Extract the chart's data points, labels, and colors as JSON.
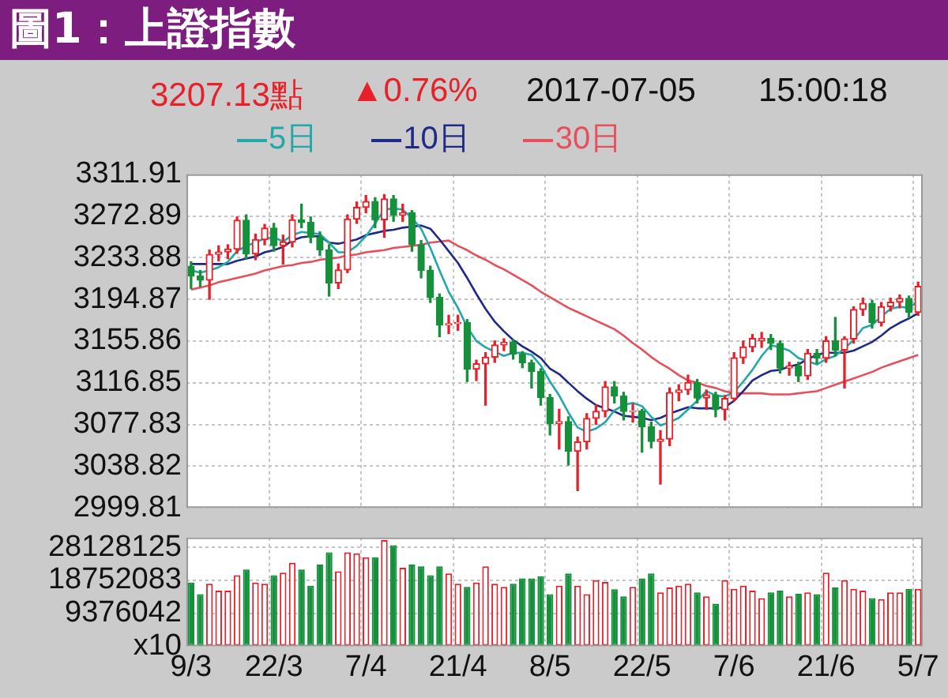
{
  "chart_data": [
    {
      "type": "candlestick",
      "title": "圖1：上證指數",
      "annotations": [
        "3207.13點",
        "▲0.76%",
        "2017-07-05",
        "15:00:18"
      ],
      "categories": [
        null,
        null,
        null,
        null,
        null,
        null,
        null,
        null,
        null,
        null,
        null,
        null,
        null,
        null,
        null,
        null,
        null,
        null,
        null,
        null,
        null,
        null,
        null,
        null,
        null,
        null,
        null,
        null,
        null,
        null,
        null,
        null,
        null,
        null,
        null,
        null,
        null,
        null,
        null,
        null,
        null,
        null,
        null,
        null,
        null,
        null,
        null,
        null,
        null,
        null,
        null,
        null,
        null,
        null,
        null,
        null,
        null,
        null,
        null,
        null,
        null,
        null,
        null,
        null,
        null,
        null,
        null,
        null,
        null,
        null,
        null,
        null,
        null,
        null,
        null,
        null,
        null,
        null,
        null,
        null
      ],
      "ohlc": [
        [
          3226.0,
          3230.0,
          3205.0,
          3216.7
        ],
        [
          3216.7,
          3222.0,
          3207.0,
          3212.8
        ],
        [
          3212.8,
          3241.0,
          3195.0,
          3237.0
        ],
        [
          3237.0,
          3245.0,
          3231.0,
          3239.3
        ],
        [
          3239.3,
          3246.0,
          3233.0,
          3241.8
        ],
        [
          3241.8,
          3272.0,
          3238.0,
          3268.9
        ],
        [
          3268.9,
          3274.0,
          3233.0,
          3237.4
        ],
        [
          3237.4,
          3256.0,
          3232.0,
          3250.8
        ],
        [
          3250.8,
          3265.0,
          3246.0,
          3261.6
        ],
        [
          3261.6,
          3266.0,
          3240.0,
          3245.2
        ],
        [
          3245.2,
          3255.0,
          3228.0,
          3248.6
        ],
        [
          3248.6,
          3274.0,
          3244.0,
          3269.4
        ],
        [
          3269.4,
          3284.0,
          3262.0,
          3266.9
        ],
        [
          3266.9,
          3272.0,
          3248.0,
          3252.9
        ],
        [
          3252.9,
          3258.0,
          3236.0,
          3241.3
        ],
        [
          3241.3,
          3246.0,
          3198.0,
          3210.2
        ],
        [
          3210.2,
          3228.0,
          3205.0,
          3222.5
        ],
        [
          3222.5,
          3274.0,
          3220.0,
          3270.0
        ],
        [
          3270.0,
          3286.0,
          3266.0,
          3281.0
        ],
        [
          3281.0,
          3292.0,
          3276.0,
          3286.6
        ],
        [
          3286.6,
          3290.0,
          3262.0,
          3269.4
        ],
        [
          3269.4,
          3293.0,
          3253.0,
          3289.0
        ],
        [
          3289.0,
          3292.0,
          3268.0,
          3273.8
        ],
        [
          3273.8,
          3284.0,
          3268.0,
          3276.0
        ],
        [
          3276.0,
          3278.0,
          3240.0,
          3246.1
        ],
        [
          3246.1,
          3250.0,
          3215.0,
          3222.2
        ],
        [
          3222.2,
          3226.0,
          3192.0,
          3196.7
        ],
        [
          3196.7,
          3200.0,
          3160.0,
          3170.7
        ],
        [
          3170.7,
          3180.0,
          3163.0,
          3172.2
        ],
        [
          3172.2,
          3180.0,
          3166.0,
          3173.2
        ],
        [
          3173.2,
          3176.0,
          3118.0,
          3129.5
        ],
        [
          3129.5,
          3138.0,
          3119.0,
          3134.6
        ],
        [
          3134.6,
          3145.0,
          3096.0,
          3140.8
        ],
        [
          3140.8,
          3156.0,
          3136.0,
          3152.2
        ],
        [
          3152.2,
          3158.0,
          3147.0,
          3154.7
        ],
        [
          3154.7,
          3157.0,
          3139.0,
          3143.7
        ],
        [
          3143.7,
          3146.0,
          3131.0,
          3135.4
        ],
        [
          3135.4,
          3138.0,
          3112.0,
          3127.4
        ],
        [
          3127.4,
          3130.0,
          3096.0,
          3103.0
        ],
        [
          3103.0,
          3106.0,
          3068.0,
          3078.6
        ],
        [
          3078.6,
          3092.0,
          3055.0,
          3080.5
        ],
        [
          3080.5,
          3085.0,
          3040.0,
          3052.8
        ],
        [
          3052.8,
          3066.0,
          3016.0,
          3061.5
        ],
        [
          3061.5,
          3088.0,
          3055.0,
          3083.5
        ],
        [
          3083.5,
          3096.0,
          3078.0,
          3090.2
        ],
        [
          3090.2,
          3118.0,
          3085.0,
          3113.0
        ],
        [
          3113.0,
          3118.0,
          3098.0,
          3104.4
        ],
        [
          3104.4,
          3108.0,
          3082.0,
          3090.1
        ],
        [
          3090.1,
          3097.0,
          3080.0,
          3090.6
        ],
        [
          3090.6,
          3092.0,
          3052.0,
          3075.7
        ],
        [
          3075.7,
          3080.0,
          3056.0,
          3061.9
        ],
        [
          3061.9,
          3072.0,
          3022.0,
          3064.1
        ],
        [
          3064.1,
          3112.0,
          3058.0,
          3107.8
        ],
        [
          3107.8,
          3115.0,
          3100.0,
          3110.1
        ],
        [
          3110.1,
          3124.0,
          3106.0,
          3117.2
        ],
        [
          3117.2,
          3120.0,
          3098.0,
          3102.6
        ],
        [
          3102.6,
          3110.0,
          3092.0,
          3105.5
        ],
        [
          3105.5,
          3108.0,
          3085.0,
          3091.7
        ],
        [
          3091.7,
          3105.0,
          3082.0,
          3102.1
        ],
        [
          3102.1,
          3145.0,
          3100.0,
          3140.3
        ],
        [
          3140.3,
          3156.0,
          3135.0,
          3150.3
        ],
        [
          3150.3,
          3162.0,
          3146.0,
          3158.4
        ],
        [
          3156.0,
          3164.0,
          3150.0,
          3158.4
        ],
        [
          3158.4,
          3162.0,
          3148.0,
          3153.7
        ],
        [
          3153.7,
          3156.0,
          3126.0,
          3130.7
        ],
        [
          3130.7,
          3136.0,
          3124.0,
          3132.5
        ],
        [
          3132.5,
          3136.0,
          3118.0,
          3123.2
        ],
        [
          3123.2,
          3148.0,
          3120.0,
          3144.4
        ],
        [
          3144.4,
          3148.0,
          3135.0,
          3140.0
        ],
        [
          3140.0,
          3160.0,
          3136.0,
          3156.2
        ],
        [
          3156.2,
          3178.0,
          3142.0,
          3147.5
        ],
        [
          3147.5,
          3160.0,
          3112.0,
          3157.9
        ],
        [
          3157.9,
          3188.0,
          3154.0,
          3185.4
        ],
        [
          3185.4,
          3196.0,
          3180.0,
          3191.2
        ],
        [
          3191.2,
          3194.0,
          3168.0,
          3173.2
        ],
        [
          3173.2,
          3192.0,
          3170.0,
          3188.1
        ],
        [
          3188.1,
          3196.0,
          3184.0,
          3192.4
        ],
        [
          3192.4,
          3199.0,
          3187.0,
          3195.9
        ],
        [
          3195.9,
          3198.0,
          3178.0,
          3182.8
        ],
        [
          3182.8,
          3211.0,
          3180.0,
          3207.13
        ]
      ],
      "series": [
        {
          "name": "5日",
          "type": "line",
          "color": "#22a8a8",
          "values": [
            3222,
            3220,
            3222,
            3225,
            3230,
            3240,
            3245,
            3248,
            3252,
            3253,
            3249,
            3255,
            3258,
            3257,
            3256,
            3248,
            3239,
            3239,
            3245,
            3254,
            3266,
            3279,
            3280,
            3279,
            3271,
            3261,
            3243,
            3222,
            3202,
            3187,
            3169,
            3156,
            3150,
            3146,
            3142,
            3145,
            3145,
            3143,
            3133,
            3118,
            3105,
            3089,
            3075,
            3071,
            3074,
            3080,
            3091,
            3096,
            3098,
            3095,
            3085,
            3077,
            3080,
            3084,
            3092,
            3100,
            3109,
            3105,
            3104,
            3108,
            3118,
            3129,
            3142,
            3152,
            3150,
            3147,
            3140,
            3137,
            3134,
            3139,
            3142,
            3149,
            3157,
            3168,
            3171,
            3179,
            3186,
            3188,
            3187,
            3193
          ]
        },
        {
          "name": "10日",
          "type": "line",
          "color": "#1f2a86",
          "values": [
            3228,
            3228,
            3228,
            3228,
            3228,
            3231,
            3233,
            3235,
            3239,
            3241,
            3244,
            3250,
            3253,
            3254,
            3254,
            3248,
            3247,
            3249,
            3251,
            3255,
            3257,
            3259,
            3260,
            3262,
            3263,
            3264,
            3261,
            3251,
            3240,
            3229,
            3215,
            3200,
            3186,
            3174,
            3165,
            3157,
            3151,
            3146,
            3140,
            3130,
            3125,
            3117,
            3109,
            3102,
            3096,
            3093,
            3090,
            3086,
            3085,
            3084,
            3082,
            3084,
            3088,
            3091,
            3094,
            3093,
            3093,
            3093,
            3094,
            3100,
            3109,
            3119,
            3124,
            3128,
            3129,
            3132,
            3134,
            3139,
            3143,
            3145,
            3145,
            3145,
            3147,
            3151,
            3155,
            3161,
            3168,
            3173,
            3177,
            3182
          ]
        },
        {
          "name": "30日",
          "type": "line",
          "color": "#e6505c",
          "values": [
            3204,
            3206,
            3208,
            3211,
            3213,
            3215,
            3217,
            3219,
            3222,
            3224,
            3226,
            3227,
            3229,
            3230,
            3232,
            3233,
            3234,
            3236,
            3237,
            3239,
            3240,
            3241,
            3243,
            3244,
            3245,
            3246,
            3248,
            3249,
            3250,
            3245,
            3241,
            3236,
            3232,
            3227,
            3223,
            3218,
            3213,
            3208,
            3202,
            3197,
            3192,
            3187,
            3183,
            3179,
            3175,
            3171,
            3167,
            3161,
            3154,
            3148,
            3141,
            3135,
            3130,
            3124,
            3119,
            3117,
            3114,
            3112,
            3109,
            3107,
            3107,
            3107,
            3107,
            3106,
            3106,
            3106,
            3107,
            3108,
            3109,
            3112,
            3115,
            3118,
            3121,
            3124,
            3127,
            3131,
            3134,
            3137,
            3140,
            3143
          ]
        }
      ],
      "ylim": [
        2999.81,
        3311.91
      ],
      "yticks": [
        2999.81,
        3038.82,
        3077.83,
        3116.85,
        3155.86,
        3194.87,
        3233.88,
        3272.89,
        3311.91
      ],
      "grid": true,
      "legend": "top",
      "tick_labels": "y"
    },
    {
      "type": "bar",
      "categories": [
        "9/3",
        null,
        null,
        null,
        null,
        null,
        null,
        null,
        null,
        "22/3",
        null,
        null,
        null,
        null,
        null,
        null,
        null,
        null,
        null,
        "7/4",
        null,
        null,
        null,
        null,
        null,
        null,
        null,
        null,
        null,
        "21/4",
        null,
        null,
        null,
        null,
        null,
        null,
        null,
        null,
        null,
        "8/5",
        null,
        null,
        null,
        null,
        null,
        null,
        null,
        null,
        null,
        "22/5",
        null,
        null,
        null,
        null,
        null,
        null,
        null,
        null,
        null,
        "7/6",
        null,
        null,
        null,
        null,
        null,
        null,
        null,
        null,
        null,
        "21/6",
        null,
        null,
        null,
        null,
        null,
        null,
        null,
        null,
        null,
        "5/7"
      ],
      "values": [
        18100000,
        14800000,
        17800000,
        15800000,
        15800000,
        20200000,
        21800000,
        18100000,
        17800000,
        20200000,
        20900000,
        23700000,
        21800000,
        17200000,
        23200000,
        26700000,
        21300000,
        26700000,
        26400000,
        25300000,
        25300000,
        30200000,
        28700000,
        22300000,
        23200000,
        22700000,
        20200000,
        22700000,
        20700000,
        17800000,
        16900000,
        18100000,
        22700000,
        17800000,
        16900000,
        17800000,
        19300000,
        19300000,
        19900000,
        14800000,
        17200000,
        20700000,
        17200000,
        14800000,
        18800000,
        18300000,
        16200000,
        14200000,
        16900000,
        19300000,
        20700000,
        15300000,
        16700000,
        17200000,
        17800000,
        15300000,
        14200000,
        12100000,
        18800000,
        16300000,
        17200000,
        15800000,
        13700000,
        15300000,
        15800000,
        14200000,
        14900000,
        15300000,
        14800000,
        20900000,
        16700000,
        18800000,
        16300000,
        15800000,
        13700000,
        13400000,
        15300000,
        15300000,
        16300000,
        16300000
      ],
      "colors": [
        "#15913c",
        "#15913c",
        "#e8202a",
        "#e8202a",
        "#e8202a",
        "#e8202a",
        "#15913c",
        "#e8202a",
        "#e8202a",
        "#15913c",
        "#e8202a",
        "#e8202a",
        "#15913c",
        "#15913c",
        "#15913c",
        "#15913c",
        "#e8202a",
        "#e8202a",
        "#e8202a",
        "#e8202a",
        "#15913c",
        "#e8202a",
        "#15913c",
        "#e8202a",
        "#15913c",
        "#15913c",
        "#15913c",
        "#15913c",
        "#e8202a",
        "#e8202a",
        "#15913c",
        "#e8202a",
        "#e8202a",
        "#e8202a",
        "#e8202a",
        "#15913c",
        "#15913c",
        "#15913c",
        "#15913c",
        "#15913c",
        "#e8202a",
        "#15913c",
        "#e8202a",
        "#e8202a",
        "#e8202a",
        "#e8202a",
        "#15913c",
        "#15913c",
        "#e8202a",
        "#15913c",
        "#15913c",
        "#e8202a",
        "#e8202a",
        "#e8202a",
        "#e8202a",
        "#15913c",
        "#e8202a",
        "#15913c",
        "#e8202a",
        "#e8202a",
        "#e8202a",
        "#e8202a",
        "#e8202a",
        "#15913c",
        "#15913c",
        "#e8202a",
        "#15913c",
        "#e8202a",
        "#15913c",
        "#e8202a",
        "#15913c",
        "#e8202a",
        "#e8202a",
        "#e8202a",
        "#15913c",
        "#e8202a",
        "#e8202a",
        "#e8202a",
        "#15913c",
        "#e8202a"
      ],
      "ylim": [
        0,
        30900000
      ],
      "yticks": [
        {
          "value": 0,
          "label": "x10"
        },
        9376042,
        18752083,
        28128125
      ],
      "grid": true
    }
  ]
}
